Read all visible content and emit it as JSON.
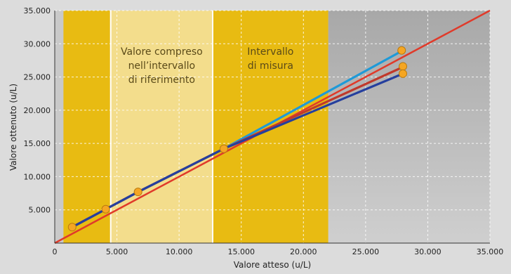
{
  "chart_data": {
    "type": "line",
    "xlabel": "Valore atteso (u/L)",
    "ylabel": "Valore ottenuto (u/L)",
    "xlim": [
      0,
      35000
    ],
    "ylim": [
      0,
      35000
    ],
    "x_ticks": [
      0,
      5000,
      10000,
      15000,
      20000,
      25000,
      30000,
      35000
    ],
    "x_tick_labels": [
      "0",
      "5.000",
      "10.000",
      "15.000",
      "20.000",
      "25.000",
      "30.000",
      "35.000"
    ],
    "y_ticks": [
      5000,
      10000,
      15000,
      20000,
      25000,
      30000,
      35000
    ],
    "y_tick_labels": [
      "5.000",
      "10.000",
      "15.000",
      "20.000",
      "25.000",
      "30.000",
      "35.000"
    ],
    "grid": true,
    "regions": [
      {
        "x_range": [
          700,
          4500
        ],
        "color": "#e8bb12"
      },
      {
        "x_range": [
          4500,
          12700
        ],
        "color": "#f3dd8c",
        "label": [
          "Valore compreso",
          "nell’intervallo",
          "di riferimento"
        ]
      },
      {
        "x_range": [
          12700,
          22000
        ],
        "color": "#e8bb12",
        "label": [
          "Intervallo",
          "di misura"
        ]
      },
      {
        "x_range": [
          22000,
          35000
        ],
        "color": "#9b9b9b"
      }
    ],
    "band_dividers": [
      4500,
      12700
    ],
    "identity_line": {
      "x": [
        0,
        35000
      ],
      "y": [
        0,
        35000
      ],
      "color": "#e03a2a"
    },
    "series": [
      {
        "color": "#1e9ad8",
        "x": [
          1400,
          4100,
          6700,
          13600,
          28000
        ],
        "y": [
          2400,
          5100,
          7700,
          14200,
          29000
        ]
      },
      {
        "color": "#c0392b",
        "x": [
          1400,
          4100,
          6700,
          13600,
          28000
        ],
        "y": [
          2400,
          5100,
          7700,
          14200,
          26500
        ]
      },
      {
        "color": "#253f9e",
        "x": [
          1400,
          4100,
          6700,
          13600,
          28000
        ],
        "y": [
          2400,
          5100,
          7700,
          14200,
          25500
        ]
      }
    ],
    "points": {
      "color": "#f5a623",
      "x": [
        1400,
        4100,
        6700,
        13600,
        27900,
        28000,
        28000
      ],
      "y": [
        2400,
        5100,
        7700,
        14200,
        29000,
        26600,
        25500
      ]
    }
  }
}
